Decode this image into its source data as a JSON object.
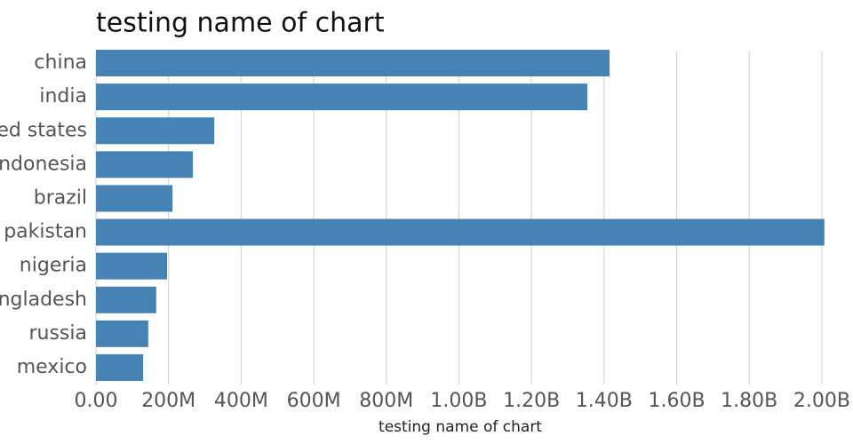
{
  "chart_data": {
    "type": "hbar",
    "title": "testing name of chart",
    "x_label": "testing name of chart",
    "categories": [
      "china",
      "india",
      "united states",
      "indonesia",
      "brazil",
      "pakistan",
      "nigeria",
      "bangladesh",
      "russia",
      "mexico"
    ],
    "values": [
      1415000000,
      1354000000,
      326000000,
      267000000,
      211000000,
      2007000000,
      196000000,
      166000000,
      144000000,
      130000000
    ],
    "color": "#4682b4",
    "xlim": [
      0,
      2010000000
    ],
    "xticks": [
      {
        "value": 0,
        "label": "0.00"
      },
      {
        "value": 200000000,
        "label": "200M"
      },
      {
        "value": 400000000,
        "label": "400M"
      },
      {
        "value": 600000000,
        "label": "600M"
      },
      {
        "value": 800000000,
        "label": "800M"
      },
      {
        "value": 1000000000,
        "label": "1.00B"
      },
      {
        "value": 1200000000,
        "label": "1.20B"
      },
      {
        "value": 1400000000,
        "label": "1.40B"
      },
      {
        "value": 1600000000,
        "label": "1.60B"
      },
      {
        "value": 1800000000,
        "label": "1.80B"
      },
      {
        "value": 2000000000,
        "label": "2.00B"
      }
    ],
    "grid": true
  }
}
